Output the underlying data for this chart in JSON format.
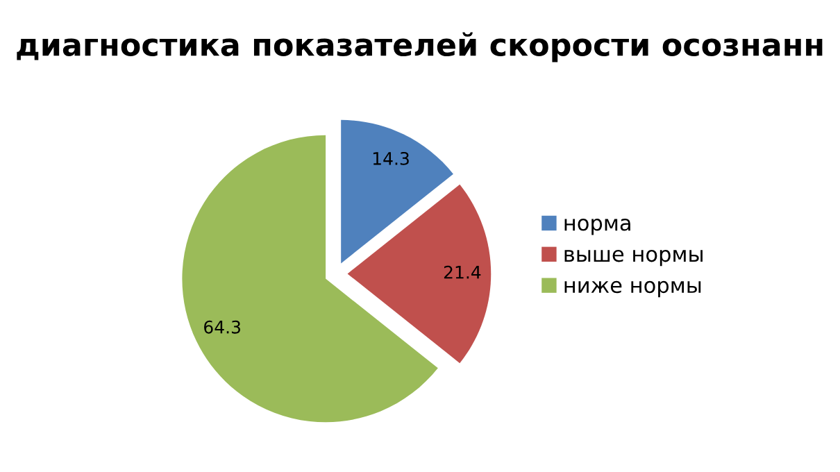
{
  "chart_data": {
    "type": "pie",
    "title": "диагностика показателей скорости осознанн",
    "categories": [
      "норма",
      "выше нормы",
      "ниже нормы"
    ],
    "values": [
      14.3,
      21.4,
      64.3
    ],
    "colors": [
      "#4f81bd",
      "#c0504d",
      "#9bbb59"
    ],
    "data_labels": true,
    "legend": "right"
  }
}
